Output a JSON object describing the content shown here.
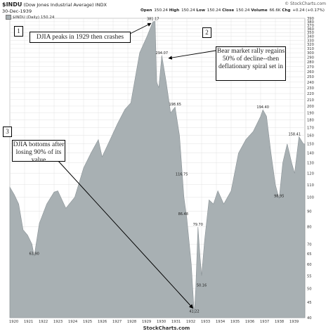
{
  "header": {
    "symbol": "$INDU",
    "name": "(Dow Jones Industrial Average)",
    "exchange": "INDX",
    "date": "30-Dec-1939",
    "source": "© StockCharts.com"
  },
  "ohlc": {
    "open_label": "Open",
    "open": "150.24",
    "high_label": "High",
    "high": "150.24",
    "low_label": "Low",
    "low": "150.24",
    "close_label": "Close",
    "close": "150.24",
    "volume_label": "Volume",
    "volume": "66.6K",
    "chg_label": "Chg",
    "chg": "+0.24 (+0.17%)"
  },
  "legend": {
    "label": "$INDU (Daily) 150.24"
  },
  "footer": "StockCharts.com",
  "annotations": [
    {
      "number": "1",
      "text": "DJIA peaks in 1929 then crashes"
    },
    {
      "number": "2",
      "text": "Bear market rally regains 50% of decline--then deflationary spiral set in"
    },
    {
      "number": "3",
      "text": "DJIA bottoms after losing 90% of its value"
    }
  ],
  "chart_data": {
    "type": "area",
    "title": "$INDU (Dow Jones Industrial Average)",
    "y_scale": "log",
    "ylim": [
      40,
      390
    ],
    "xlim": [
      1920.0,
      1940.0
    ],
    "y_ticks": [
      40,
      45,
      50,
      55,
      60,
      65,
      70,
      80,
      90,
      100,
      110,
      120,
      130,
      140,
      150,
      160,
      170,
      180,
      190,
      200,
      210,
      220,
      230,
      240,
      250,
      260,
      270,
      280,
      290,
      300,
      310,
      320,
      330,
      340,
      350,
      360,
      370,
      380,
      390
    ],
    "x_ticks": [
      "1920",
      "1921",
      "1922",
      "1923",
      "1924",
      "1925",
      "1926",
      "1927",
      "1928",
      "1929",
      "1930",
      "1931",
      "1932",
      "1933",
      "1934",
      "1935",
      "1936",
      "1937",
      "1938",
      "1939"
    ],
    "series": [
      {
        "color": "#a8b0b3",
        "x": [
          1920.0,
          1920.3,
          1920.6,
          1920.9,
          1921.2,
          1921.5,
          1921.65,
          1922.0,
          1922.5,
          1923.0,
          1923.25,
          1923.8,
          1924.4,
          1925.0,
          1925.5,
          1926.0,
          1926.25,
          1926.8,
          1927.3,
          1927.8,
          1928.2,
          1928.8,
          1929.3,
          1929.7,
          1929.85,
          1929.95,
          1930.1,
          1930.3,
          1930.6,
          1930.9,
          1931.2,
          1931.5,
          1931.8,
          1932.0,
          1932.3,
          1932.5,
          1932.6,
          1932.75,
          1932.9,
          1933.0,
          1933.2,
          1933.5,
          1933.8,
          1934.1,
          1934.5,
          1935.0,
          1935.5,
          1936.0,
          1936.5,
          1937.0,
          1937.15,
          1937.4,
          1937.7,
          1938.0,
          1938.25,
          1938.5,
          1938.8,
          1939.1,
          1939.3,
          1939.6,
          1939.9,
          1940.0
        ],
        "values": [
          108,
          102,
          95,
          78,
          75,
          70,
          63.9,
          82,
          95,
          104,
          105,
          92,
          100,
          125,
          140,
          155,
          136,
          155,
          175,
          195,
          205,
          300,
          340,
          380,
          381.17,
          240,
          230,
          294.07,
          240,
          190,
          198.65,
          160,
          100,
          85,
          60,
          41.22,
          50,
          79.7,
          63,
          55,
          72,
          98,
          95,
          105,
          95,
          105,
          140,
          155,
          165,
          185,
          194.4,
          185,
          140,
          110,
          98.95,
          130,
          150,
          130,
          120,
          158.41,
          150,
          150
        ]
      }
    ],
    "data_labels": [
      {
        "x": 1929.7,
        "y": 381.17,
        "text": "381.17"
      },
      {
        "x": 1930.3,
        "y": 294.07,
        "text": "294.07"
      },
      {
        "x": 1931.2,
        "y": 198.65,
        "text": "198.65"
      },
      {
        "x": 1931.65,
        "y": 116.75,
        "text": "116.75"
      },
      {
        "x": 1931.75,
        "y": 86.48,
        "text": "86.48"
      },
      {
        "x": 1932.75,
        "y": 79.7,
        "text": "79.70"
      },
      {
        "x": 1932.5,
        "y": 41.22,
        "text": "41.22"
      },
      {
        "x": 1933.0,
        "y": 50.16,
        "text": "50.16"
      },
      {
        "x": 1921.65,
        "y": 63.9,
        "text": "63.90"
      },
      {
        "x": 1937.15,
        "y": 194.4,
        "text": "194.40"
      },
      {
        "x": 1938.25,
        "y": 98.95,
        "text": "98.95"
      },
      {
        "x": 1939.3,
        "y": 158.41,
        "text": "158.41"
      }
    ]
  }
}
